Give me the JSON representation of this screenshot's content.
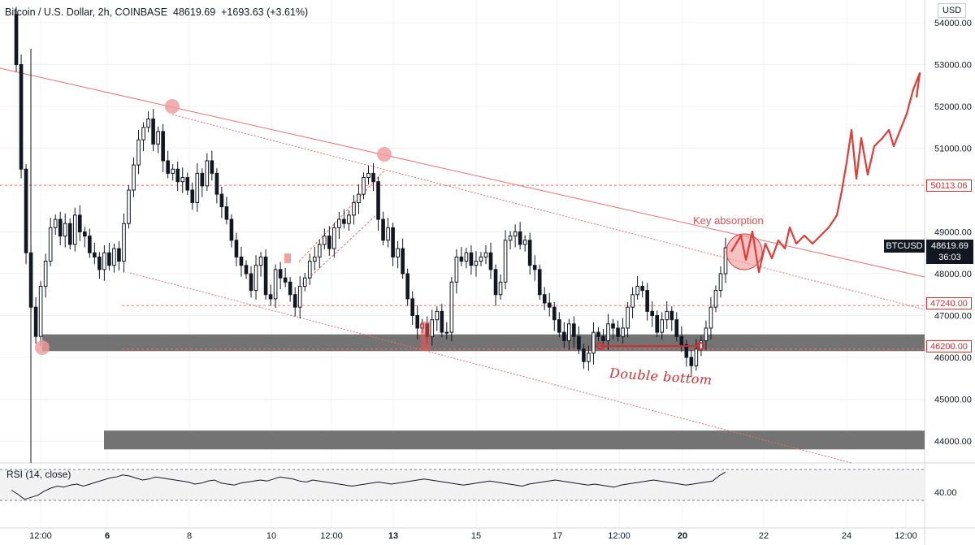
{
  "header": {
    "symbol": "Bitcoin / U.S. Dollar, 2h, COINBASE",
    "last": "48619.69",
    "change": "+1693.63 (+3.61%)"
  },
  "currency": "USD",
  "rsi_label": "RSI (14, close)",
  "price_ticks": [
    "54000.00",
    "53000.00",
    "52000.00",
    "51000.00",
    "49000.00",
    "48000.00",
    "47000.00",
    "46000.00",
    "45000.00",
    "44000.00"
  ],
  "rsi_ticks": [
    "40.00"
  ],
  "x_ticks": [
    "12:00",
    "6",
    "8",
    "10",
    "12:00",
    "13",
    "15",
    "17",
    "12:00",
    "20",
    "22",
    "24",
    "12:00"
  ],
  "marked_levels": [
    "50113.06",
    "47240.00",
    "46200.00"
  ],
  "last_tag": {
    "symbol": "BTCUSD",
    "price": "48619.69",
    "countdown": "36:03"
  },
  "annotations": {
    "key_absorption": "Key absorption",
    "double_bottom": "Double bottom"
  },
  "colors": {
    "up": "#131722",
    "down": "#131722",
    "annotation": "#e53935",
    "zone": "#6b6b6b",
    "rsi_line": "#131722"
  },
  "chart_data": {
    "type": "candlestick",
    "title": "Bitcoin / U.S. Dollar, 2h, COINBASE",
    "ylim": [
      43400,
      54400
    ],
    "x_ticks": [
      "12:00",
      "6",
      "8",
      "10",
      "12:00",
      "13",
      "15",
      "17",
      "12:00",
      "20",
      "22",
      "24",
      "12:00"
    ],
    "support_zones": [
      [
        46150,
        46550
      ],
      [
        43800,
        44250
      ]
    ],
    "horizontal_levels": [
      50113.06,
      47240.0,
      46200.0
    ],
    "ohlc_close_path": [
      54200,
      53000,
      50500,
      48500,
      47200,
      46500,
      47700,
      48300,
      49100,
      49300,
      48900,
      49200,
      48700,
      49400,
      49000,
      48900,
      48500,
      48400,
      48100,
      48500,
      48200,
      48600,
      48300,
      49200,
      50000,
      50600,
      51200,
      51500,
      51700,
      51100,
      51400,
      50700,
      50400,
      50500,
      50200,
      50300,
      50000,
      49700,
      50400,
      50100,
      50700,
      50400,
      49900,
      49600,
      49300,
      48800,
      48400,
      48200,
      48000,
      47600,
      48200,
      48400,
      47500,
      47400,
      48100,
      47900,
      47800,
      47500,
      47200,
      47700,
      47900,
      48300,
      48400,
      48700,
      48900,
      48600,
      49100,
      49300,
      49200,
      49400,
      49700,
      49900,
      50300,
      50400,
      50200,
      49300,
      48800,
      49100,
      48400,
      48600,
      48000,
      47400,
      47000,
      46700,
      46800,
      46500,
      46900,
      47100,
      46600,
      46600,
      47800,
      48400,
      48300,
      48500,
      48200,
      48300,
      48400,
      48500,
      48100,
      47500,
      47800,
      48800,
      48900,
      49000,
      48700,
      48800,
      48200,
      48100,
      47500,
      47300,
      47200,
      46900,
      46600,
      46400,
      46800,
      46500,
      46200,
      45900,
      46100,
      46600,
      46500,
      46400,
      46800,
      46700,
      46500,
      46700,
      47200,
      47500,
      47700,
      47600,
      47100,
      47000,
      46600,
      46900,
      47100,
      46900,
      46500,
      46300,
      46000,
      45800,
      46200,
      46400,
      46700,
      47200,
      47600,
      48000,
      48619.69
    ],
    "rsi_path": [
      42,
      38,
      33,
      35,
      37,
      41,
      44,
      46,
      45,
      47,
      48,
      46,
      48,
      50,
      52,
      54,
      55,
      57,
      56,
      54,
      52,
      53,
      55,
      54,
      53,
      52,
      51,
      50,
      48,
      49,
      51,
      52,
      49,
      48,
      47,
      49,
      50,
      51,
      52,
      51,
      53,
      55,
      54,
      53,
      51,
      50,
      52,
      51,
      50,
      49,
      48,
      47,
      46,
      47,
      48,
      49,
      50,
      49,
      48,
      49,
      50,
      51,
      52,
      53,
      52,
      51,
      50,
      49,
      48,
      47,
      48,
      49,
      50,
      51,
      50,
      49,
      48,
      47,
      46,
      48,
      49,
      50,
      51,
      52,
      51,
      50,
      49,
      48,
      47,
      48,
      47,
      46,
      45,
      47,
      48,
      49,
      50,
      51,
      52,
      51,
      50,
      49,
      48,
      47,
      48,
      49,
      50,
      51,
      56,
      60
    ]
  }
}
